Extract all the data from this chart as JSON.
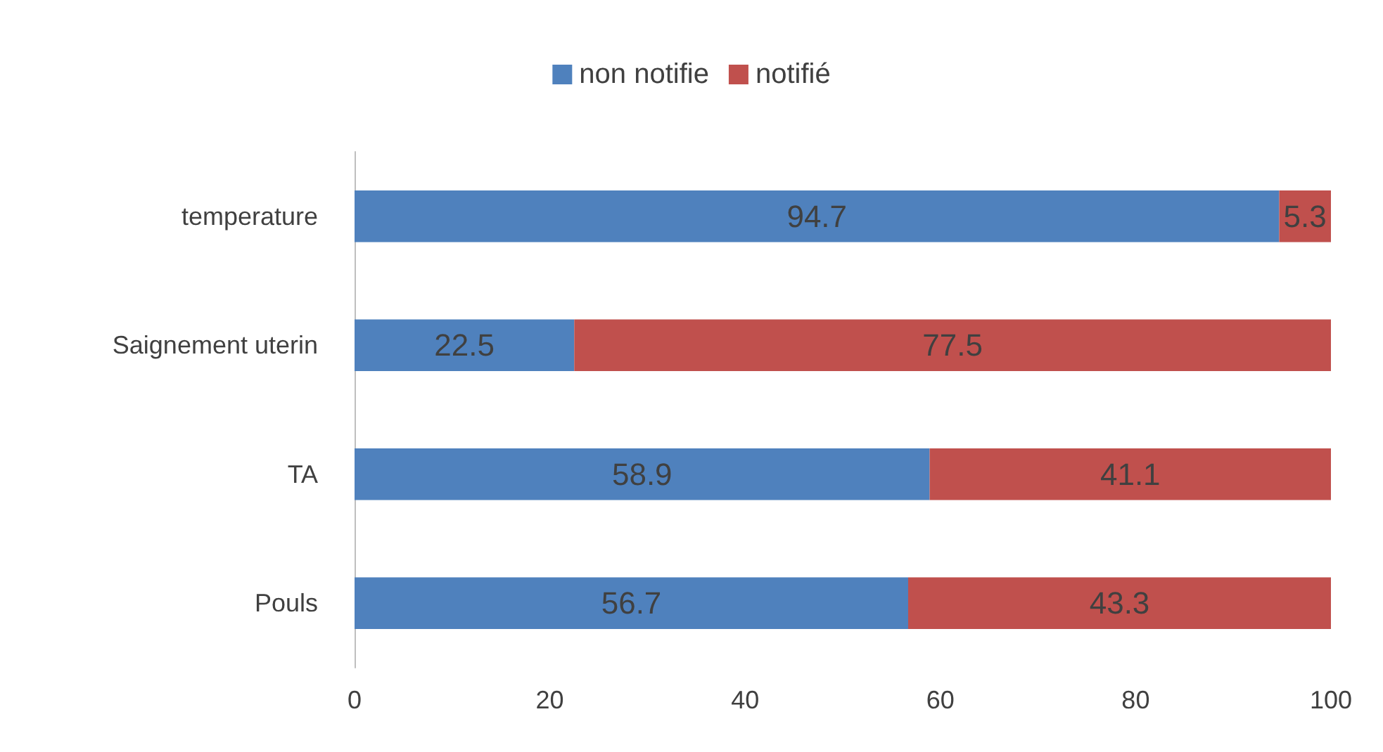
{
  "chart_data": {
    "type": "bar",
    "orientation": "horizontal",
    "stacked": true,
    "categories": [
      "temperature",
      "Saignement uterin",
      "TA",
      "Pouls"
    ],
    "series": [
      {
        "name": "non notifie",
        "color": "#4f81bd",
        "values": [
          94.7,
          22.5,
          58.9,
          56.7
        ]
      },
      {
        "name": "notifié",
        "color": "#c0504d",
        "values": [
          5.3,
          77.5,
          41.1,
          43.3
        ]
      }
    ],
    "xlim": [
      0,
      100
    ],
    "xticks": [
      0,
      20,
      40,
      60,
      80,
      100
    ],
    "grid": false,
    "legend": "top",
    "data_labels": true
  }
}
